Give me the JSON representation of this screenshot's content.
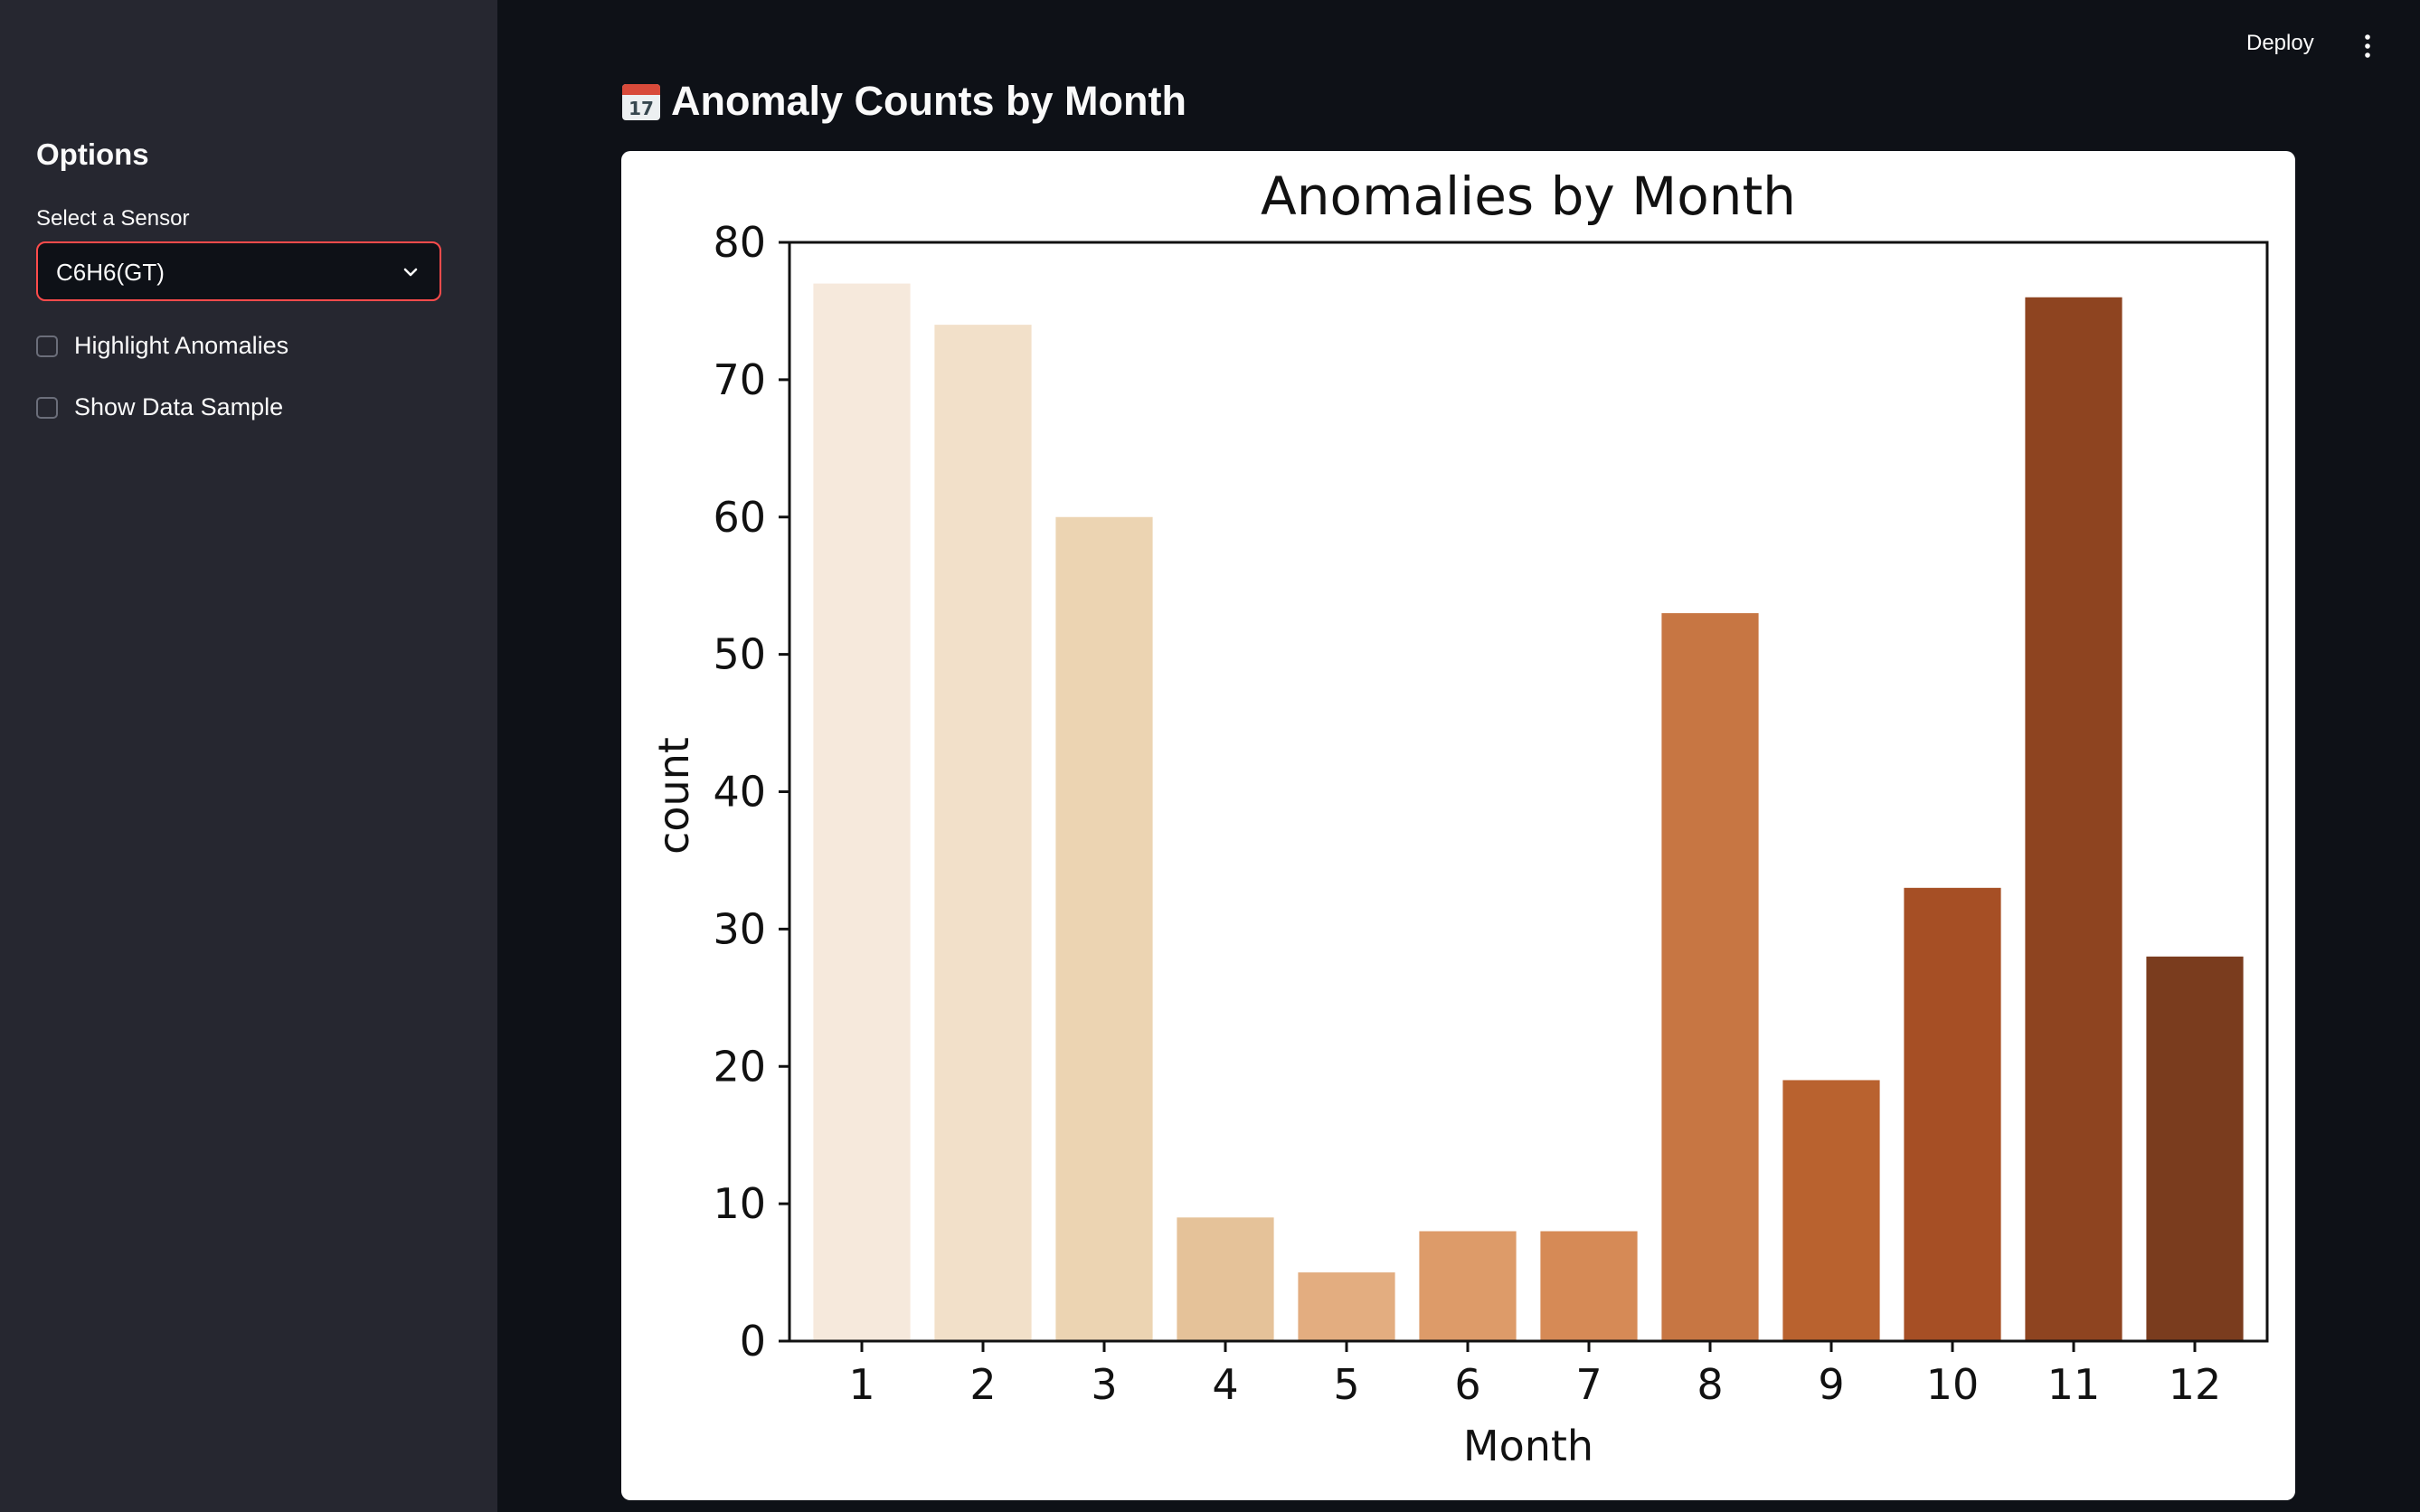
{
  "sidebar": {
    "title": "Options",
    "sensor_label": "Select a Sensor",
    "sensor_value": "C6H6(GT)",
    "checkboxes": [
      {
        "label": "Highlight Anomalies",
        "checked": false
      },
      {
        "label": "Show Data Sample",
        "checked": false
      }
    ]
  },
  "toolbar": {
    "deploy_label": "Deploy"
  },
  "main": {
    "title_icon": "calendar-icon",
    "title_icon_text": "17",
    "title": "Anomaly Counts by Month"
  },
  "colors": {
    "app_background": "#0e1117",
    "sidebar_background": "#262730",
    "select_border": "#ff4b4b"
  },
  "chart_data": {
    "type": "bar",
    "title": "Anomalies by Month",
    "xlabel": "Month",
    "ylabel": "count",
    "categories": [
      "1",
      "2",
      "3",
      "4",
      "5",
      "6",
      "7",
      "8",
      "9",
      "10",
      "11",
      "12"
    ],
    "values": [
      77,
      74,
      60,
      9,
      5,
      8,
      8,
      53,
      19,
      33,
      76,
      28
    ],
    "ylim": [
      0,
      80
    ],
    "yticks": [
      0,
      10,
      20,
      30,
      40,
      50,
      60,
      70,
      80
    ],
    "grid": false,
    "legend": "none",
    "colors": [
      "#f6e9dc",
      "#f2e0c9",
      "#ecd4b2",
      "#e5c299",
      "#e3ad80",
      "#dd9b69",
      "#d68a56",
      "#c77643",
      "#b9622f",
      "#a64f25",
      "#8e4420",
      "#7a3c1e"
    ]
  }
}
